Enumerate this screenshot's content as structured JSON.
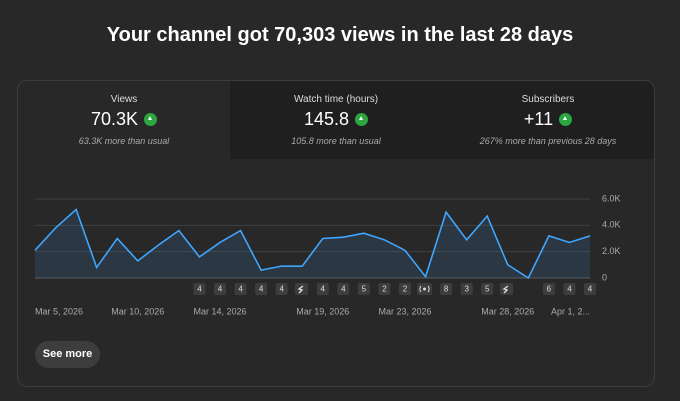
{
  "header": {
    "title": "Your channel got 70,303 views in the last 28 days"
  },
  "cards": [
    {
      "label": "Views",
      "value": "70.3K",
      "note": "63.3K more than usual"
    },
    {
      "label": "Watch time (hours)",
      "value": "145.8",
      "note": "105.8 more than usual"
    },
    {
      "label": "Subscribers",
      "value": "+11",
      "note": "267% more than previous 28 days"
    }
  ],
  "chart_data": {
    "type": "area",
    "categories": [
      "Mar 5, 2026",
      null,
      null,
      null,
      null,
      "Mar 10, 2026",
      null,
      null,
      null,
      "Mar 14, 2026",
      null,
      null,
      null,
      null,
      "Mar 19, 2026",
      null,
      null,
      null,
      "Mar 23, 2026",
      null,
      null,
      null,
      null,
      "Mar 28, 2026",
      null,
      null,
      null,
      "Apr 1, 2..."
    ],
    "values": [
      2100,
      3800,
      5200,
      800,
      3000,
      1300,
      2500,
      3600,
      1600,
      2700,
      3600,
      600,
      900,
      900,
      3000,
      3100,
      3400,
      2900,
      2100,
      100,
      5000,
      2900,
      4700,
      1000,
      0,
      3200,
      2700,
      3200
    ],
    "color": "#3ea6ff",
    "ylim": [
      0,
      6000
    ],
    "yticks": [
      0,
      {
        "value": 2000,
        "label": "2.0K"
      },
      {
        "value": 4000,
        "label": "4.0K"
      },
      {
        "value": 6000,
        "label": "6.0K"
      }
    ],
    "grid": true
  },
  "upload_markers": [
    null,
    null,
    null,
    null,
    null,
    null,
    null,
    null,
    "4",
    "4",
    "4",
    "4",
    "4",
    null,
    "4",
    "4",
    "5",
    "2",
    "2",
    null,
    "8",
    "3",
    "5",
    null,
    null,
    "6",
    "4",
    "4"
  ],
  "button": "See more"
}
